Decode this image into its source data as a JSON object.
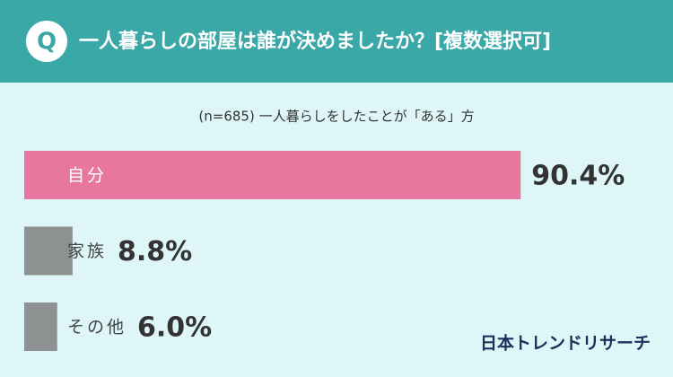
{
  "chart_data": {
    "type": "bar",
    "orientation": "horizontal",
    "badge": "Q",
    "title": "一人暮らしの部屋は誰が決めましたか？[複数選択可]",
    "subtitle": "(n=685) 一人暮らしをしたことが「ある」方",
    "categories": [
      "自分",
      "家族",
      "その他"
    ],
    "values": [
      90.4,
      8.8,
      6.0
    ],
    "value_labels": [
      "90.4%",
      "8.8%",
      "6.0%"
    ],
    "colors": [
      "#e8779f",
      "#8e9192",
      "#8e9192"
    ],
    "xlim": [
      0,
      100
    ],
    "source": "日本トレンドリサーチ"
  }
}
